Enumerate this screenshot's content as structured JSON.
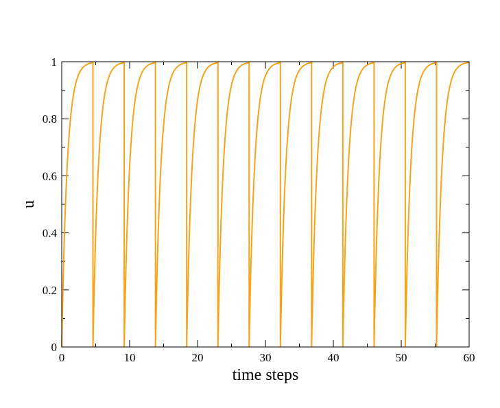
{
  "chart_data": {
    "type": "line",
    "title": "",
    "xlabel": "time steps",
    "ylabel": "u",
    "xlim": [
      0,
      60
    ],
    "ylim": [
      0,
      1
    ],
    "x_ticks": [
      0,
      10,
      20,
      30,
      40,
      50,
      60
    ],
    "x_tick_labels": [
      "0",
      "10",
      "20",
      "30",
      "40",
      "50",
      "60"
    ],
    "y_ticks": [
      0,
      0.2,
      0.4,
      0.6,
      0.8,
      1
    ],
    "y_tick_labels": [
      "0",
      "0.2",
      "0.4",
      "0.6",
      "0.8",
      "1"
    ],
    "grid": false,
    "legend": "none",
    "series": [
      {
        "color": "#f5a31a",
        "shape": "exponential rise toward 1, reset to 0 at each spike",
        "period": 4.6,
        "time_constant": 0.8,
        "reset_times": [
          4.6,
          9.2,
          13.8,
          18.4,
          23.0,
          27.6,
          32.2,
          36.8,
          41.4,
          46.0,
          50.6,
          55.2
        ],
        "x": [
          0,
          0.25,
          0.5,
          1.0,
          1.5,
          2.0,
          3.0,
          4.6,
          4.6,
          4.85,
          5.1,
          5.6,
          6.1,
          6.6,
          7.6,
          9.2
        ],
        "y": [
          0.0,
          0.27,
          0.46,
          0.71,
          0.85,
          0.92,
          0.98,
          0.99,
          0.0,
          0.27,
          0.46,
          0.71,
          0.85,
          0.92,
          0.98,
          0.99
        ]
      }
    ]
  }
}
